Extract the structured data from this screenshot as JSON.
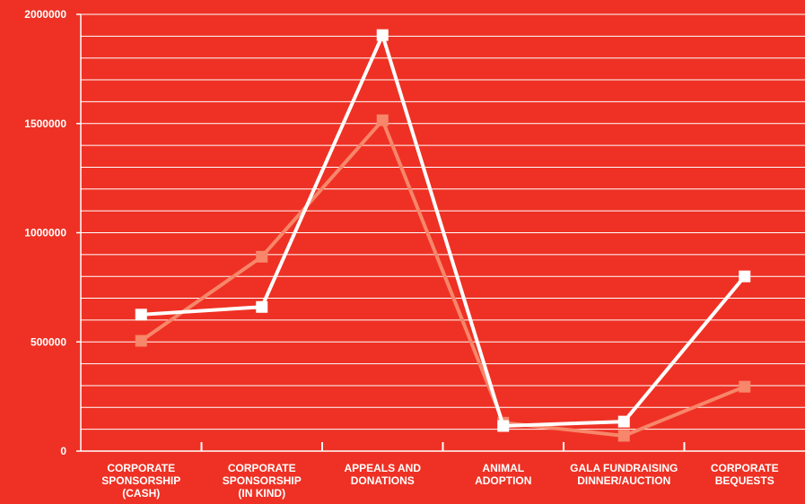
{
  "chart_data": {
    "type": "line",
    "categories": [
      [
        "CORPORATE",
        "SPONSORSHIP",
        "(CASH)"
      ],
      [
        "CORPORATE",
        "SPONSORSHIP",
        "(IN KIND)"
      ],
      [
        "APPEALS AND",
        "DONATIONS"
      ],
      [
        "ANIMAL",
        "ADOPTION"
      ],
      [
        "GALA FUNDRAISING",
        "DINNER/AUCTION"
      ],
      [
        "CORPORATE",
        "BEQUESTS"
      ]
    ],
    "series": [
      {
        "values": [
          625000,
          660000,
          1905000,
          115000,
          135000,
          800000
        ],
        "color": "#ffffff"
      },
      {
        "values": [
          505000,
          890000,
          1515000,
          130000,
          70000,
          295000
        ],
        "color": "#f7866a"
      }
    ],
    "ylim": [
      0,
      2000000
    ],
    "yticks": [
      "0",
      "500000",
      "1000000",
      "1500000",
      "2000000"
    ],
    "ytick_values": [
      0,
      500000,
      1000000,
      1500000,
      2000000
    ],
    "minor_step": 100000,
    "grid": true,
    "colors": {
      "background": "#ee3124",
      "axis": "#ffffff",
      "grid": "#ffffff"
    }
  }
}
